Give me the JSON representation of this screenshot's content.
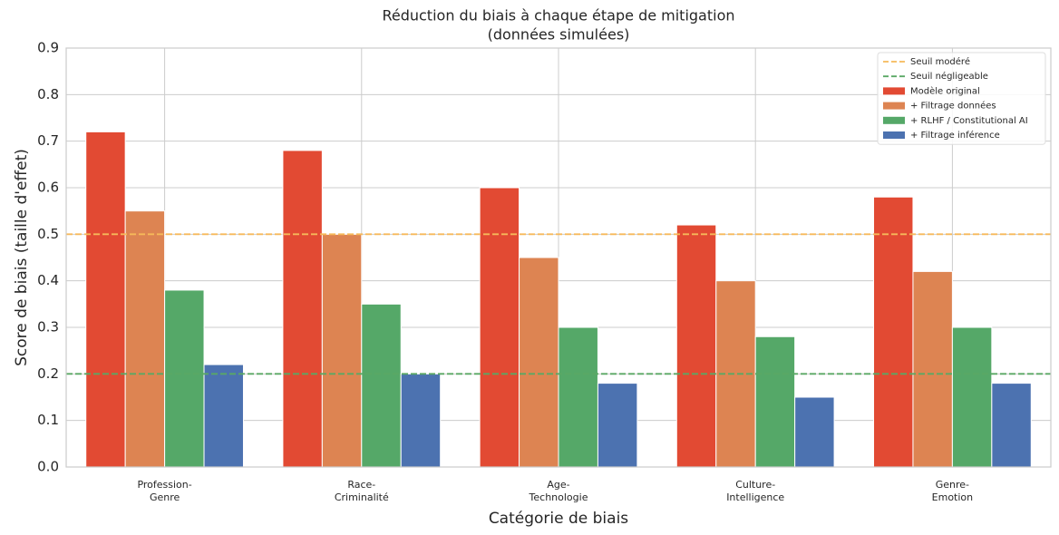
{
  "chart_data": {
    "type": "bar",
    "title": "Réduction du biais à chaque étape de mitigation",
    "subtitle": "(données simulées)",
    "x_label": "Catégorie de biais",
    "y_label": "Score de biais (taille d'effet)",
    "categories": [
      [
        "Profession-",
        "Genre"
      ],
      [
        "Race-",
        "Criminalité"
      ],
      [
        "Age-",
        "Technologie"
      ],
      [
        "Culture-",
        "Intelligence"
      ],
      [
        "Genre-",
        "Emotion"
      ]
    ],
    "series": [
      {
        "name": "Modèle original",
        "color": "#e24a33",
        "values": [
          0.72,
          0.68,
          0.6,
          0.52,
          0.58
        ]
      },
      {
        "name": "+ Filtrage données",
        "color": "#dd8452",
        "values": [
          0.55,
          0.5,
          0.45,
          0.4,
          0.42
        ]
      },
      {
        "name": "+ RLHF / Constitutional AI",
        "color": "#55a868",
        "values": [
          0.38,
          0.35,
          0.3,
          0.28,
          0.3
        ]
      },
      {
        "name": "+ Filtrage inférence",
        "color": "#4c72b0",
        "values": [
          0.22,
          0.2,
          0.18,
          0.15,
          0.18
        ]
      }
    ],
    "reference_lines": [
      {
        "name": "Seuil modéré",
        "value": 0.5,
        "color": "#f6b95a"
      },
      {
        "name": "Seuil négligeable",
        "value": 0.2,
        "color": "#5aa865"
      }
    ],
    "ylim": [
      0,
      0.9
    ],
    "yticks": [
      {
        "value": 0,
        "label": "0.0"
      },
      0.1,
      0.2,
      0.3,
      0.4,
      0.5,
      0.6,
      0.7,
      0.8,
      0.9
    ],
    "grid": true,
    "legend": "upper right"
  }
}
